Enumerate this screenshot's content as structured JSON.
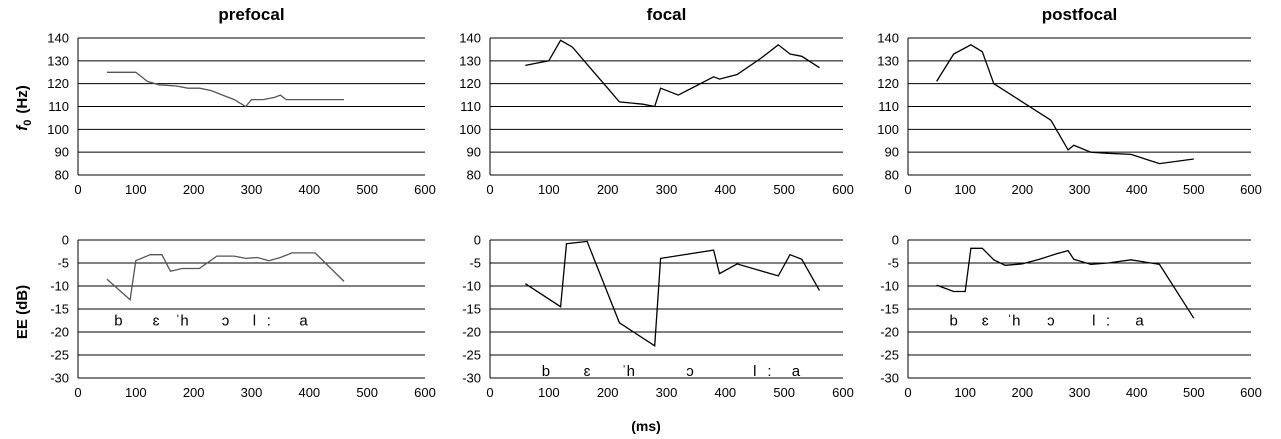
{
  "figure": {
    "ylabel_top_f": "f",
    "ylabel_top_sub": "0",
    "ylabel_top_unit": "(Hz)",
    "ylabel_bottom": "EE  (dB)",
    "xlabel": "(ms)"
  },
  "chart_data": [
    {
      "id": "prefocal-f0",
      "type": "line",
      "title": "prefocal",
      "xlim": [
        0,
        600
      ],
      "ylim": [
        80,
        140
      ],
      "xticks": [
        0,
        100,
        200,
        300,
        400,
        500,
        600
      ],
      "yticks": [
        80,
        90,
        100,
        110,
        120,
        130,
        140
      ],
      "grid": true,
      "color": "#555555",
      "series": [
        {
          "x": [
            50,
            100,
            120,
            140,
            170,
            190,
            210,
            230,
            250,
            270,
            290,
            300,
            320,
            340,
            350,
            360,
            380,
            400,
            420,
            440,
            460
          ],
          "y": [
            125,
            125,
            121,
            119.5,
            119,
            118,
            118,
            117,
            115,
            113,
            110,
            113,
            113,
            114,
            115,
            113,
            113,
            113,
            113,
            113,
            113
          ]
        }
      ]
    },
    {
      "id": "focal-f0",
      "type": "line",
      "title": "focal",
      "xlim": [
        0,
        600
      ],
      "ylim": [
        80,
        140
      ],
      "xticks": [
        0,
        100,
        200,
        300,
        400,
        500,
        600
      ],
      "yticks": [
        80,
        90,
        100,
        110,
        120,
        130,
        140
      ],
      "grid": true,
      "color": "#000000",
      "series": [
        {
          "x": [
            60,
            100,
            120,
            140,
            170,
            200,
            220,
            260,
            280,
            290,
            320,
            350,
            380,
            390,
            420,
            460,
            490,
            510,
            530,
            560
          ],
          "y": [
            128,
            130,
            139,
            136,
            127,
            118,
            112,
            111,
            110,
            118,
            115,
            119,
            123,
            122,
            124,
            131,
            137,
            133,
            132,
            127
          ]
        }
      ]
    },
    {
      "id": "postfocal-f0",
      "type": "line",
      "title": "postfocal",
      "xlim": [
        0,
        600
      ],
      "ylim": [
        80,
        140
      ],
      "xticks": [
        0,
        100,
        200,
        300,
        400,
        500,
        600
      ],
      "yticks": [
        80,
        90,
        100,
        110,
        120,
        130,
        140
      ],
      "grid": true,
      "color": "#000000",
      "series": [
        {
          "x": [
            50,
            80,
            110,
            130,
            150,
            200,
            250,
            280,
            290,
            320,
            350,
            390,
            440,
            500
          ],
          "y": [
            121,
            133,
            137,
            134,
            120,
            112,
            104,
            91,
            93,
            90,
            89.5,
            89,
            85,
            87
          ]
        }
      ]
    },
    {
      "id": "prefocal-ee",
      "type": "line",
      "title": "",
      "xlim": [
        0,
        600
      ],
      "ylim": [
        -30,
        0
      ],
      "xticks": [
        0,
        100,
        200,
        300,
        400,
        500,
        600
      ],
      "yticks": [
        -30,
        -25,
        -20,
        -15,
        -10,
        -5,
        0
      ],
      "grid": true,
      "color": "#555555",
      "segments": [
        {
          "label": "b",
          "x": 70,
          "y": -17.5
        },
        {
          "label": "ɛ",
          "x": 135,
          "y": -17.5
        },
        {
          "label": "ˈh",
          "x": 180,
          "y": -17.5
        },
        {
          "label": "ɔ",
          "x": 255,
          "y": -17.5
        },
        {
          "label": "l",
          "x": 305,
          "y": -17.5
        },
        {
          "label": ":",
          "x": 330,
          "y": -17.5
        },
        {
          "label": "a",
          "x": 390,
          "y": -17.5
        }
      ],
      "series": [
        {
          "x": [
            50,
            90,
            100,
            125,
            145,
            160,
            180,
            210,
            240,
            270,
            290,
            310,
            330,
            350,
            370,
            410,
            460
          ],
          "y": [
            -8.5,
            -13,
            -4.5,
            -3.2,
            -3.2,
            -6.8,
            -6.2,
            -6.2,
            -3.5,
            -3.5,
            -4,
            -3.8,
            -4.5,
            -3.8,
            -2.8,
            -2.8,
            -9
          ]
        }
      ]
    },
    {
      "id": "focal-ee",
      "type": "line",
      "title": "",
      "xlim": [
        0,
        600
      ],
      "ylim": [
        -30,
        0
      ],
      "xticks": [
        0,
        100,
        200,
        300,
        400,
        500,
        600
      ],
      "yticks": [
        -30,
        -25,
        -20,
        -15,
        -10,
        -5,
        0
      ],
      "grid": true,
      "color": "#000000",
      "segments": [
        {
          "label": "b",
          "x": 95,
          "y": -28.5
        },
        {
          "label": "ɛ",
          "x": 165,
          "y": -28.5
        },
        {
          "label": "ˈh",
          "x": 235,
          "y": -28.5
        },
        {
          "label": "ɔ",
          "x": 340,
          "y": -28.5
        },
        {
          "label": "l",
          "x": 450,
          "y": -28.5
        },
        {
          "label": ":",
          "x": 475,
          "y": -28.5
        },
        {
          "label": "a",
          "x": 520,
          "y": -28.5
        }
      ],
      "series": [
        {
          "x": [
            60,
            120,
            130,
            165,
            220,
            280,
            290,
            380,
            390,
            420,
            490,
            510,
            530,
            560
          ],
          "y": [
            -9.5,
            -14.5,
            -0.8,
            -0.3,
            -18,
            -23,
            -4,
            -2.2,
            -7.3,
            -5.2,
            -7.8,
            -3.2,
            -4.2,
            -11
          ]
        }
      ]
    },
    {
      "id": "postfocal-ee",
      "type": "line",
      "title": "",
      "xlim": [
        0,
        600
      ],
      "ylim": [
        -30,
        0
      ],
      "xticks": [
        0,
        100,
        200,
        300,
        400,
        500,
        600
      ],
      "yticks": [
        -30,
        -25,
        -20,
        -15,
        -10,
        -5,
        0
      ],
      "grid": true,
      "color": "#000000",
      "segments": [
        {
          "label": "b",
          "x": 80,
          "y": -17.5
        },
        {
          "label": "ɛ",
          "x": 135,
          "y": -17.5
        },
        {
          "label": "ˈh",
          "x": 185,
          "y": -17.5
        },
        {
          "label": "ɔ",
          "x": 250,
          "y": -17.5
        },
        {
          "label": "l",
          "x": 325,
          "y": -17.5
        },
        {
          "label": ":",
          "x": 350,
          "y": -17.5
        },
        {
          "label": "a",
          "x": 405,
          "y": -17.5
        }
      ],
      "series": [
        {
          "x": [
            50,
            80,
            100,
            110,
            130,
            150,
            170,
            200,
            230,
            260,
            280,
            290,
            320,
            350,
            390,
            440,
            500
          ],
          "y": [
            -9.8,
            -11.2,
            -11.2,
            -1.8,
            -1.8,
            -4.3,
            -5.5,
            -5.2,
            -4.2,
            -3,
            -2.3,
            -4.2,
            -5.3,
            -5,
            -4.3,
            -5.3,
            -17
          ]
        }
      ]
    }
  ]
}
